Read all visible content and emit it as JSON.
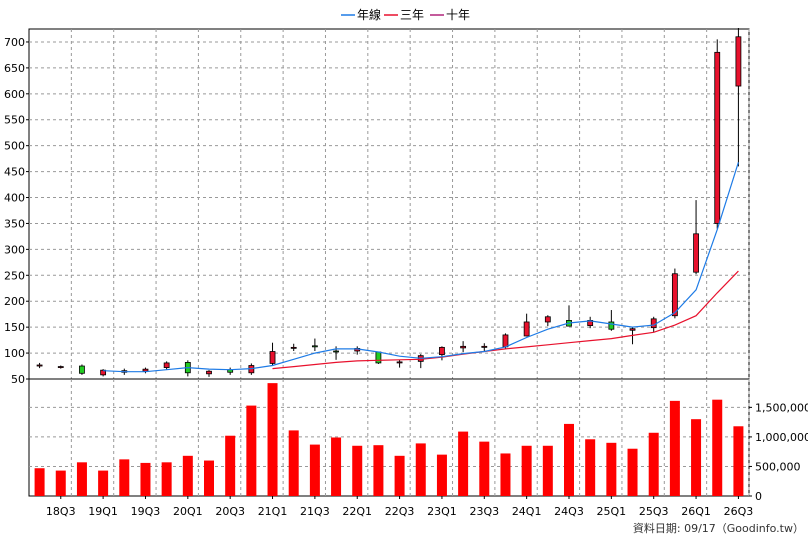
{
  "chart_data": {
    "type": "candlestick-with-volume",
    "legend": [
      {
        "label": "年線",
        "color": "#1e7be6"
      },
      {
        "label": "三年",
        "color": "#e8112d"
      },
      {
        "label": "十年",
        "color": "#b0247a"
      }
    ],
    "price_axis": {
      "ylim": [
        50,
        725
      ],
      "ticks": [
        50,
        100,
        150,
        200,
        250,
        300,
        350,
        400,
        450,
        500,
        550,
        600,
        650,
        700
      ]
    },
    "volume_axis": {
      "ylim": [
        0,
        1980000
      ],
      "ticks": [
        0,
        500000,
        1000000,
        1500000
      ],
      "tick_labels": [
        "0",
        "500,000",
        "1,000,000",
        "1,500,000"
      ]
    },
    "x_labels": [
      {
        "label": "18Q3",
        "i": 1
      },
      {
        "label": "19Q1",
        "i": 3
      },
      {
        "label": "19Q3",
        "i": 5
      },
      {
        "label": "20Q1",
        "i": 7
      },
      {
        "label": "20Q3",
        "i": 9
      },
      {
        "label": "21Q1",
        "i": 11
      },
      {
        "label": "21Q3",
        "i": 13
      },
      {
        "label": "22Q1",
        "i": 15
      },
      {
        "label": "22Q3",
        "i": 17
      },
      {
        "label": "23Q1",
        "i": 19
      },
      {
        "label": "23Q3",
        "i": 21
      },
      {
        "label": "24Q1",
        "i": 23
      },
      {
        "label": "24Q3",
        "i": 25
      },
      {
        "label": "25Q1",
        "i": 27
      },
      {
        "label": "25Q3",
        "i": 29
      },
      {
        "label": "26Q1",
        "i": 31
      },
      {
        "label": "26Q3",
        "i": 33
      }
    ],
    "candles": [
      {
        "o": 75,
        "h": 81,
        "l": 71,
        "c": 77
      },
      {
        "o": 73,
        "h": 76,
        "l": 70,
        "c": 74
      },
      {
        "o": 75,
        "h": 78,
        "l": 58,
        "c": 61
      },
      {
        "o": 58,
        "h": 69,
        "l": 55,
        "c": 67
      },
      {
        "o": 63,
        "h": 70,
        "l": 58,
        "c": 66
      },
      {
        "o": 65,
        "h": 72,
        "l": 61,
        "c": 69
      },
      {
        "o": 72,
        "h": 84,
        "l": 68,
        "c": 81
      },
      {
        "o": 82,
        "h": 86,
        "l": 55,
        "c": 62
      },
      {
        "o": 60,
        "h": 67,
        "l": 54,
        "c": 65
      },
      {
        "o": 68,
        "h": 72,
        "l": 58,
        "c": 63
      },
      {
        "o": 62,
        "h": 80,
        "l": 58,
        "c": 76
      },
      {
        "o": 80,
        "h": 120,
        "l": 77,
        "c": 103
      },
      {
        "o": 110,
        "h": 118,
        "l": 104,
        "c": 111
      },
      {
        "o": 114,
        "h": 128,
        "l": 104,
        "c": 112
      },
      {
        "o": 104,
        "h": 113,
        "l": 87,
        "c": 103
      },
      {
        "o": 104,
        "h": 113,
        "l": 97,
        "c": 109
      },
      {
        "o": 102,
        "h": 103,
        "l": 79,
        "c": 81
      },
      {
        "o": 81,
        "h": 87,
        "l": 72,
        "c": 83
      },
      {
        "o": 84,
        "h": 98,
        "l": 71,
        "c": 95
      },
      {
        "o": 97,
        "h": 113,
        "l": 86,
        "c": 111
      },
      {
        "o": 110,
        "h": 123,
        "l": 102,
        "c": 113
      },
      {
        "o": 111,
        "h": 119,
        "l": 102,
        "c": 113
      },
      {
        "o": 112,
        "h": 138,
        "l": 108,
        "c": 135
      },
      {
        "o": 133,
        "h": 176,
        "l": 132,
        "c": 160
      },
      {
        "o": 160,
        "h": 173,
        "l": 152,
        "c": 170
      },
      {
        "o": 163,
        "h": 192,
        "l": 155,
        "c": 152
      },
      {
        "o": 153,
        "h": 170,
        "l": 148,
        "c": 163
      },
      {
        "o": 160,
        "h": 183,
        "l": 143,
        "c": 146
      },
      {
        "o": 144,
        "h": 151,
        "l": 117,
        "c": 147
      },
      {
        "o": 149,
        "h": 170,
        "l": 140,
        "c": 166
      },
      {
        "o": 172,
        "h": 263,
        "l": 167,
        "c": 253
      },
      {
        "o": 256,
        "h": 395,
        "l": 252,
        "c": 330
      },
      {
        "o": 350,
        "h": 705,
        "l": 340,
        "c": 680
      },
      {
        "o": 615,
        "h": 727,
        "l": 460,
        "c": 710
      }
    ],
    "series_year": [
      null,
      null,
      null,
      66,
      64,
      64,
      68,
      72,
      69,
      68,
      70,
      76,
      88,
      100,
      108,
      108,
      102,
      94,
      90,
      93,
      99,
      103,
      112,
      130,
      146,
      158,
      162,
      156,
      150,
      154,
      178,
      222,
      338,
      468
    ],
    "series_3y": [
      null,
      null,
      null,
      null,
      null,
      null,
      null,
      null,
      null,
      null,
      null,
      70,
      74,
      78,
      82,
      85,
      86,
      87,
      88,
      92,
      98,
      103,
      108,
      112,
      116,
      120,
      124,
      128,
      134,
      140,
      154,
      172,
      216,
      258
    ],
    "volume": [
      470000,
      430000,
      570000,
      430000,
      620000,
      560000,
      570000,
      680000,
      600000,
      1020000,
      1530000,
      1910000,
      1110000,
      870000,
      990000,
      850000,
      860000,
      680000,
      890000,
      700000,
      1090000,
      920000,
      720000,
      850000,
      850000,
      1220000,
      960000,
      900000,
      800000,
      1070000,
      1610000,
      1300000,
      1630000,
      1180000
    ]
  },
  "footer": {
    "text": "資料日期: 09/17（Goodinfo.tw）"
  }
}
